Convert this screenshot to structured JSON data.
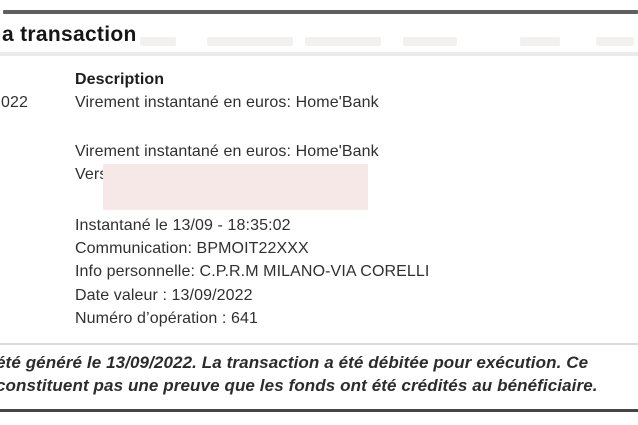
{
  "document": {
    "title_fragment": "a transaction",
    "date_fragment": "022"
  },
  "transaction": {
    "description_label": "Description",
    "description_line_1": "Virement instantané en euros: Home'Bank",
    "description_line_2": "Virement instantané en euros: Home'Bank",
    "vers_label": "Vers:",
    "rows": [
      "Instantané le 13/09 - 18:35:02",
      "Communication: BPMOIT22XXX",
      "Info personnelle: C.P.R.M MILANO-VIA CORELLI",
      "Date valeur : 13/09/2022",
      "Numéro d’opération : 641"
    ]
  },
  "footer": {
    "line_1": "été généré le 13/09/2022. La transaction a été débitée pour exécution. Ce",
    "line_2": "constituent pas une preuve que les fonds ont été crédités au bénéficiaire."
  },
  "colors": {
    "redaction_highlight": "#f7e8e8",
    "top_rule": "#5f5f5f",
    "bottom_rule": "#454545"
  }
}
